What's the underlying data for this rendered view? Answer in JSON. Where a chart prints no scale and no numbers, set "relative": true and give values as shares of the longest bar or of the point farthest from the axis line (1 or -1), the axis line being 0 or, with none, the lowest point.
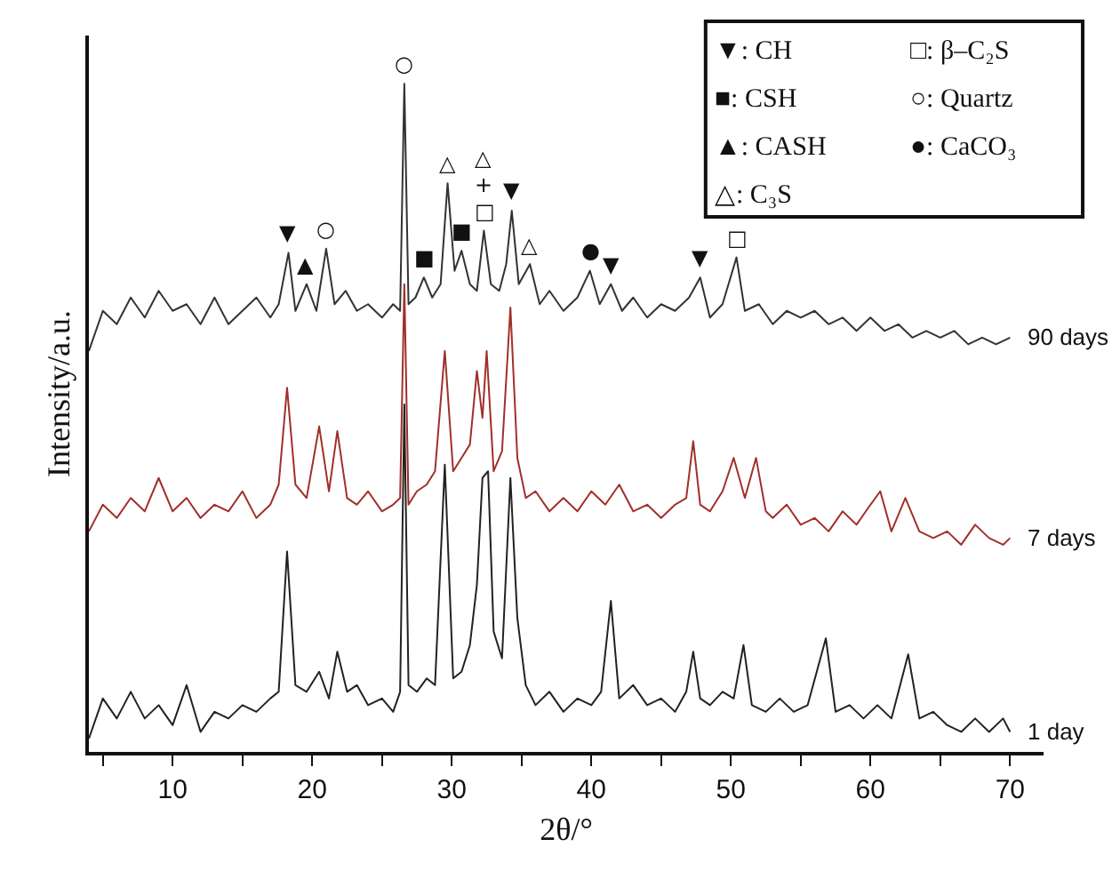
{
  "chart_data": {
    "type": "line",
    "relative": true,
    "xlabel": "2θ/°",
    "ylabel": "Intensity/a.u.",
    "legend": false,
    "xlim": [
      4,
      72.4
    ],
    "xticks": [
      {
        "value": 5,
        "label": null
      },
      10,
      {
        "value": 15,
        "label": null
      },
      20,
      {
        "value": 25,
        "label": null
      },
      30,
      {
        "value": 35,
        "label": null
      },
      40,
      {
        "value": 45,
        "label": null
      },
      50,
      {
        "value": 55,
        "label": null
      },
      60,
      {
        "value": 65,
        "label": null
      },
      70
    ],
    "series": [
      {
        "name": "90 days",
        "color": "#333333",
        "x": [
          4,
          5,
          6,
          7,
          8,
          9,
          10,
          11,
          12,
          13,
          14,
          15,
          16,
          17,
          17.6,
          18.3,
          18.8,
          19.6,
          20.3,
          21.0,
          21.6,
          22.4,
          23.2,
          24,
          25,
          25.8,
          26.3,
          26.6,
          26.9,
          27.4,
          28.0,
          28.6,
          29.2,
          29.7,
          30.2,
          30.7,
          31.3,
          31.8,
          32.3,
          32.8,
          33.4,
          33.9,
          34.3,
          34.8,
          35.6,
          36.3,
          37,
          38,
          39,
          39.9,
          40.6,
          41.4,
          42.2,
          43,
          44,
          45,
          46,
          47,
          47.8,
          48.5,
          49.4,
          50.4,
          51,
          52,
          53,
          54,
          55,
          56,
          57,
          58,
          59,
          60,
          61,
          62,
          63,
          64,
          65,
          66,
          67,
          68,
          69,
          70
        ],
        "values": [
          0.6,
          0.66,
          0.64,
          0.68,
          0.65,
          0.69,
          0.66,
          0.67,
          0.64,
          0.68,
          0.64,
          0.66,
          0.68,
          0.65,
          0.67,
          0.747,
          0.66,
          0.7,
          0.66,
          0.753,
          0.67,
          0.69,
          0.66,
          0.67,
          0.65,
          0.67,
          0.66,
          1.0,
          0.67,
          0.68,
          0.71,
          0.68,
          0.7,
          0.851,
          0.72,
          0.75,
          0.7,
          0.69,
          0.78,
          0.7,
          0.69,
          0.73,
          0.81,
          0.7,
          0.73,
          0.67,
          0.69,
          0.66,
          0.68,
          0.72,
          0.67,
          0.7,
          0.66,
          0.68,
          0.65,
          0.67,
          0.66,
          0.68,
          0.71,
          0.65,
          0.67,
          0.74,
          0.66,
          0.67,
          0.64,
          0.66,
          0.65,
          0.66,
          0.64,
          0.65,
          0.63,
          0.65,
          0.63,
          0.64,
          0.62,
          0.63,
          0.62,
          0.63,
          0.61,
          0.62,
          0.61,
          0.62
        ]
      },
      {
        "name": "7 days",
        "color": "#a0302a",
        "x": [
          4,
          5,
          6,
          7,
          8,
          9,
          10,
          11,
          12,
          13,
          14,
          15,
          16,
          17,
          17.6,
          18.2,
          18.8,
          19.6,
          20.5,
          21.2,
          21.8,
          22.5,
          23.2,
          24,
          25,
          25.8,
          26.3,
          26.6,
          26.9,
          27.5,
          28.2,
          28.8,
          29.5,
          30.1,
          30.7,
          31.3,
          31.8,
          32.2,
          32.5,
          33.0,
          33.6,
          34.2,
          34.7,
          35.3,
          36,
          37,
          38,
          39,
          40,
          41,
          42,
          43,
          44,
          45,
          46,
          46.8,
          47.3,
          47.8,
          48.5,
          49.4,
          50.2,
          51,
          51.8,
          52.5,
          53,
          54,
          55,
          56,
          57,
          58,
          59,
          60,
          60.7,
          61.5,
          62.5,
          63.5,
          64.5,
          65.5,
          66.5,
          67.5,
          68.5,
          69.5,
          70
        ],
        "values": [
          0.33,
          0.37,
          0.35,
          0.38,
          0.36,
          0.41,
          0.36,
          0.38,
          0.35,
          0.37,
          0.36,
          0.39,
          0.35,
          0.37,
          0.4,
          0.545,
          0.4,
          0.38,
          0.487,
          0.39,
          0.48,
          0.38,
          0.37,
          0.39,
          0.36,
          0.37,
          0.38,
          0.7,
          0.37,
          0.39,
          0.4,
          0.42,
          0.6,
          0.42,
          0.44,
          0.46,
          0.57,
          0.5,
          0.6,
          0.42,
          0.45,
          0.665,
          0.44,
          0.38,
          0.39,
          0.36,
          0.38,
          0.36,
          0.39,
          0.37,
          0.4,
          0.36,
          0.37,
          0.35,
          0.37,
          0.38,
          0.465,
          0.37,
          0.36,
          0.39,
          0.44,
          0.38,
          0.44,
          0.36,
          0.35,
          0.37,
          0.34,
          0.35,
          0.33,
          0.36,
          0.34,
          0.37,
          0.39,
          0.33,
          0.38,
          0.33,
          0.32,
          0.33,
          0.31,
          0.34,
          0.32,
          0.31,
          0.32
        ]
      },
      {
        "name": "1 day",
        "color": "#222222",
        "x": [
          4,
          5,
          6,
          7,
          8,
          9,
          10,
          11,
          12,
          13,
          14,
          15,
          16,
          17,
          17.6,
          18.2,
          18.8,
          19.6,
          20.5,
          21.2,
          21.8,
          22.5,
          23.2,
          24,
          25,
          25.8,
          26.3,
          26.6,
          26.9,
          27.5,
          28.2,
          28.8,
          29.5,
          30.1,
          30.7,
          31.3,
          31.8,
          32.2,
          32.6,
          33.0,
          33.6,
          34.2,
          34.7,
          35.3,
          36,
          37,
          38,
          39,
          40,
          40.7,
          41.4,
          42,
          43,
          44,
          45,
          46,
          46.8,
          47.3,
          47.8,
          48.5,
          49.4,
          50.2,
          50.9,
          51.5,
          52.5,
          53.5,
          54.5,
          55.5,
          56.8,
          57.5,
          58.5,
          59.5,
          60.5,
          61.5,
          62.7,
          63.5,
          64.5,
          65.5,
          66.5,
          67.5,
          68.5,
          69.5,
          70
        ],
        "values": [
          0.02,
          0.08,
          0.05,
          0.09,
          0.05,
          0.07,
          0.04,
          0.1,
          0.03,
          0.06,
          0.05,
          0.07,
          0.06,
          0.08,
          0.09,
          0.3,
          0.1,
          0.09,
          0.12,
          0.08,
          0.15,
          0.09,
          0.1,
          0.07,
          0.08,
          0.06,
          0.09,
          0.52,
          0.1,
          0.09,
          0.11,
          0.1,
          0.43,
          0.11,
          0.12,
          0.16,
          0.25,
          0.41,
          0.42,
          0.18,
          0.14,
          0.41,
          0.2,
          0.1,
          0.07,
          0.09,
          0.06,
          0.08,
          0.07,
          0.09,
          0.226,
          0.08,
          0.1,
          0.07,
          0.08,
          0.06,
          0.09,
          0.15,
          0.08,
          0.07,
          0.09,
          0.08,
          0.16,
          0.07,
          0.06,
          0.08,
          0.06,
          0.07,
          0.17,
          0.06,
          0.07,
          0.05,
          0.07,
          0.05,
          0.146,
          0.05,
          0.06,
          0.04,
          0.03,
          0.05,
          0.03,
          0.05,
          0.03
        ]
      }
    ],
    "annotations": [
      "▼: CH",
      "■: CSH",
      "▲: CASH",
      "△: C₃S",
      "□: β–C₂S",
      "○: Quartz",
      "●: CaCO₃",
      {
        "text": "▼",
        "x": 18.3,
        "y": 0.747
      },
      {
        "text": "▲",
        "x": 19.6,
        "y": 0.7
      },
      {
        "text": "○",
        "x": 21.0,
        "y": 0.753
      },
      {
        "text": "○",
        "x": 26.6,
        "y": 1.0
      },
      {
        "text": "■",
        "x": 28.0,
        "y": 0.71
      },
      {
        "text": "△",
        "x": 29.7,
        "y": 0.851
      },
      {
        "text": "■",
        "x": 30.7,
        "y": 0.75
      },
      {
        "text": "□",
        "x": 32.3,
        "y": 0.78
      },
      {
        "text": "+",
        "x": 32.3,
        "y": 0.78
      },
      {
        "text": "△",
        "x": 32.3,
        "y": 0.78
      },
      {
        "text": "▼",
        "x": 34.3,
        "y": 0.81
      },
      {
        "text": "△",
        "x": 35.6,
        "y": 0.73
      },
      {
        "text": "●",
        "x": 39.9,
        "y": 0.72
      },
      {
        "text": "▼",
        "x": 41.4,
        "y": 0.7
      },
      {
        "text": "▼",
        "x": 47.8,
        "y": 0.71
      },
      {
        "text": "□",
        "x": 50.4,
        "y": 0.74
      }
    ]
  }
}
